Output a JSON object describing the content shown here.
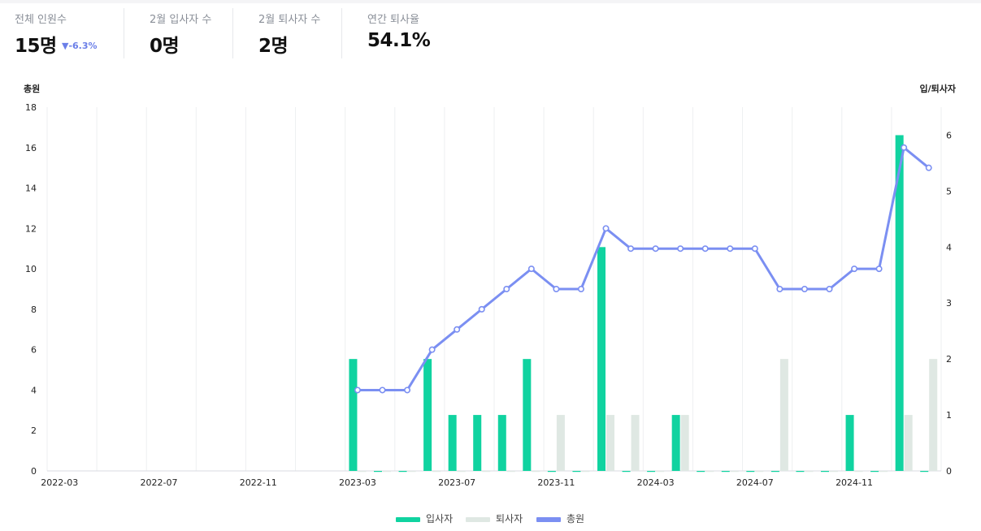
{
  "kpis": [
    {
      "label": "전체 인원수",
      "value": "15명",
      "delta": "▼-6.3%"
    },
    {
      "label": "2월 입사자 수",
      "value": "0명"
    },
    {
      "label": "2월 퇴사자 수",
      "value": "2명"
    },
    {
      "label": "연간 퇴사율",
      "value": "54.1%"
    }
  ],
  "colors": {
    "hires": "#10d3a0",
    "leavers": "#dfe8e3",
    "total": "#7b8ff2",
    "delta": "#6b7fe8",
    "grid": "#eeeff1"
  },
  "legend": [
    "입사자",
    "퇴사자",
    "총원"
  ],
  "chart_data": {
    "type": "bar+line",
    "y_left_label": "총원",
    "y_right_label": "입/퇴사자",
    "y_left_range": [
      0,
      18
    ],
    "y_left_ticks": [
      0,
      2,
      4,
      6,
      8,
      10,
      12,
      14,
      16,
      18
    ],
    "y_right_range": [
      0,
      6.5
    ],
    "y_right_ticks": [
      0,
      1,
      2,
      3,
      4,
      5,
      6
    ],
    "x_tick_labels": [
      "2022-03",
      "2022-07",
      "2022-11",
      "2023-03",
      "2023-07",
      "2023-11",
      "2024-03",
      "2024-07",
      "2024-11"
    ],
    "categories": [
      "2022-03",
      "2022-04",
      "2022-05",
      "2022-06",
      "2022-07",
      "2022-08",
      "2022-09",
      "2022-10",
      "2022-11",
      "2022-12",
      "2023-01",
      "2023-02",
      "2023-03",
      "2023-04",
      "2023-05",
      "2023-06",
      "2023-07",
      "2023-08",
      "2023-09",
      "2023-10",
      "2023-11",
      "2023-12",
      "2024-01",
      "2024-02",
      "2024-03",
      "2024-04",
      "2024-05",
      "2024-06",
      "2024-07",
      "2024-08",
      "2024-09",
      "2024-10",
      "2024-11",
      "2024-12",
      "2025-01",
      "2025-02"
    ],
    "series": [
      {
        "name": "입사자",
        "kind": "bar",
        "axis": "right",
        "values": [
          null,
          null,
          null,
          null,
          null,
          null,
          null,
          null,
          null,
          null,
          null,
          null,
          2,
          0,
          0,
          2,
          1,
          1,
          1,
          2,
          0,
          0,
          4,
          0,
          0,
          1,
          0,
          0,
          0,
          0,
          0,
          0,
          1,
          0,
          6,
          0
        ]
      },
      {
        "name": "퇴사자",
        "kind": "bar",
        "axis": "right",
        "values": [
          null,
          null,
          null,
          null,
          null,
          null,
          null,
          null,
          null,
          null,
          null,
          null,
          0,
          0,
          0,
          0,
          0,
          0,
          0,
          0,
          1,
          0,
          1,
          1,
          0,
          1,
          0,
          0,
          0,
          2,
          0,
          0,
          0,
          0,
          1,
          2
        ]
      },
      {
        "name": "총원",
        "kind": "line",
        "axis": "left",
        "values": [
          null,
          null,
          null,
          null,
          null,
          null,
          null,
          null,
          null,
          null,
          null,
          null,
          4,
          4,
          4,
          6,
          7,
          8,
          9,
          10,
          9,
          9,
          12,
          11,
          11,
          11,
          11,
          11,
          11,
          9,
          9,
          9,
          10,
          10,
          16,
          15
        ]
      }
    ]
  }
}
